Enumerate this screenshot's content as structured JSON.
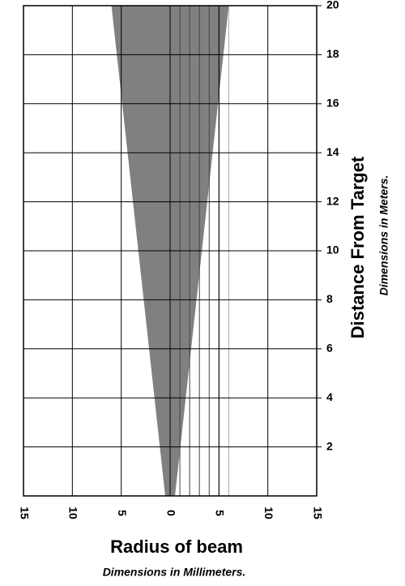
{
  "chart_data": {
    "type": "beam",
    "x_label": "Radius of beam",
    "x_sublabel": "Dimensions in Millimeters.",
    "y_label": "Distance From Target",
    "y_sublabel": "Dimensions in Meters.",
    "distance": [
      0,
      20
    ],
    "radius": [
      0.5,
      6
    ],
    "color": "#808080",
    "xlim": [
      -15,
      15
    ],
    "xticks": [
      {
        "value": -15,
        "label": "15"
      },
      {
        "value": -10,
        "label": "10"
      },
      {
        "value": -5,
        "label": "5"
      },
      0,
      5,
      10,
      15
    ],
    "xminor": [
      1,
      2,
      3,
      4,
      5,
      6
    ],
    "ylim": [
      0,
      20
    ],
    "yticks": [
      2,
      4,
      6,
      8,
      10,
      12,
      14,
      16,
      18,
      20
    ],
    "grid": true
  }
}
